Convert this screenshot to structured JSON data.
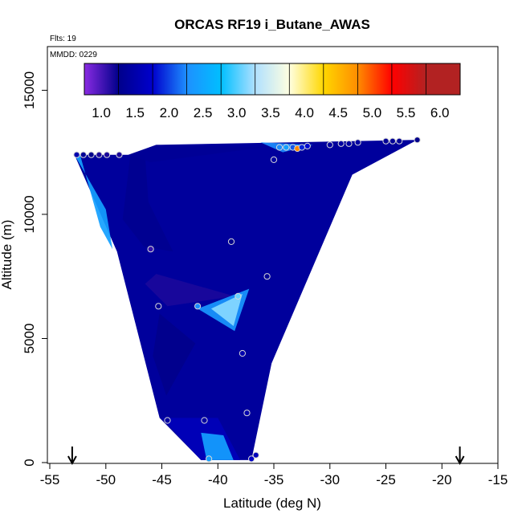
{
  "chart_data": {
    "type": "heatmap",
    "title": "ORCAS RF19 i_Butane_AWAS",
    "annotations": [
      "Flts: 19",
      "MMDD: 0229"
    ],
    "xlabel": "Latitude (deg N)",
    "ylabel": "Altitude (m)",
    "xlim": [
      -55,
      -15
    ],
    "ylim": [
      0,
      16500
    ],
    "xticks": [
      -55,
      -50,
      -45,
      -40,
      -35,
      -30,
      -25,
      -20,
      -15
    ],
    "yticks": [
      0,
      5000,
      10000,
      15000
    ],
    "grid": false,
    "colorbar": {
      "placement": "top-inside",
      "range": [
        0.75,
        6.3
      ],
      "tick_values": [
        1.0,
        1.5,
        2.0,
        2.5,
        3.0,
        3.5,
        4.0,
        4.5,
        5.0,
        5.5,
        6.0
      ],
      "tick_labels": [
        "1.0",
        "1.5",
        "2.0",
        "2.5",
        "3.0",
        "3.5",
        "4.0",
        "4.5",
        "5.0",
        "5.5",
        "6.0"
      ],
      "colors": [
        "#8a2be2",
        "#00008b",
        "#0000cd",
        "#1e90ff",
        "#00bfff",
        "#b0e0ff",
        "#ffffe0",
        "#ffd700",
        "#ff8c00",
        "#ff0000",
        "#b22222"
      ]
    },
    "field_polygon": [
      [
        -52.8,
        12400
      ],
      [
        -47.9,
        12400
      ],
      [
        -45.5,
        12800
      ],
      [
        -22.2,
        13000
      ],
      [
        -28.0,
        11600
      ],
      [
        -35.2,
        4000
      ],
      [
        -37.0,
        100
      ],
      [
        -41.5,
        100
      ],
      [
        -45.2,
        1800
      ],
      [
        -49.0,
        8500
      ]
    ],
    "field_regions": [
      {
        "level": 1.35,
        "polygon": [
          [
            -47.8,
            12400
          ],
          [
            -46.5,
            12400
          ],
          [
            -46.2,
            10500
          ],
          [
            -44.0,
            8500
          ],
          [
            -46.6,
            8700
          ],
          [
            -48.5,
            9800
          ]
        ]
      },
      {
        "level": 1.2,
        "polygon": [
          [
            -45.5,
            7600
          ],
          [
            -38.5,
            6700
          ],
          [
            -44.5,
            6300
          ],
          [
            -46.5,
            7200
          ]
        ]
      },
      {
        "level": 1.3,
        "polygon": [
          [
            -45.2,
            6000
          ],
          [
            -42.0,
            4800
          ],
          [
            -44.6,
            2700
          ],
          [
            -45.8,
            4300
          ]
        ]
      },
      {
        "level": 1.7,
        "polygon": [
          [
            -45.0,
            1800
          ],
          [
            -40.0,
            1800
          ],
          [
            -38.0,
            100
          ],
          [
            -41.5,
            100
          ]
        ]
      },
      {
        "level": 2.6,
        "polygon": [
          [
            -41.5,
            1200
          ],
          [
            -39.5,
            1100
          ],
          [
            -38.6,
            100
          ],
          [
            -41.0,
            100
          ]
        ]
      },
      {
        "level": 2.5,
        "polygon": [
          [
            -41.8,
            6200
          ],
          [
            -37.2,
            7000
          ],
          [
            -38.5,
            5300
          ]
        ]
      },
      {
        "level": 3.4,
        "polygon": [
          [
            -40.6,
            6200
          ],
          [
            -37.8,
            6800
          ],
          [
            -38.6,
            5500
          ]
        ]
      },
      {
        "level": 2.6,
        "polygon": [
          [
            -52.8,
            12400
          ],
          [
            -52.3,
            12400
          ],
          [
            -50.5,
            9500
          ],
          [
            -49.4,
            8600
          ],
          [
            -50.0,
            10200
          ]
        ]
      },
      {
        "level": 1.4,
        "polygon": [
          [
            -48.0,
            12400
          ],
          [
            -45.5,
            12800
          ],
          [
            -36.0,
            12700
          ],
          [
            -46.0,
            12100
          ]
        ]
      },
      {
        "level": 2.4,
        "polygon": [
          [
            -36.2,
            12900
          ],
          [
            -34.2,
            12500
          ],
          [
            -31.5,
            12800
          ]
        ]
      }
    ],
    "samples": [
      {
        "lat": -52.6,
        "alt": 12400,
        "value": 1.6
      },
      {
        "lat": -52.0,
        "alt": 12400,
        "value": 1.4
      },
      {
        "lat": -51.3,
        "alt": 12400,
        "value": 1.3
      },
      {
        "lat": -50.6,
        "alt": 12400,
        "value": 1.2
      },
      {
        "lat": -49.9,
        "alt": 12400,
        "value": 1.2
      },
      {
        "lat": -48.8,
        "alt": 12400,
        "value": 1.2
      },
      {
        "lat": -46.0,
        "alt": 8600,
        "value": 1.1
      },
      {
        "lat": -45.3,
        "alt": 6300,
        "value": 1.4
      },
      {
        "lat": -44.5,
        "alt": 1700,
        "value": 1.5
      },
      {
        "lat": -41.8,
        "alt": 6300,
        "value": 2.4
      },
      {
        "lat": -41.2,
        "alt": 1700,
        "value": 1.5
      },
      {
        "lat": -40.8,
        "alt": 150,
        "value": 2.6
      },
      {
        "lat": -38.8,
        "alt": 8900,
        "value": 1.3
      },
      {
        "lat": -38.2,
        "alt": 6700,
        "value": 3.3
      },
      {
        "lat": -37.8,
        "alt": 4400,
        "value": 1.6
      },
      {
        "lat": -37.4,
        "alt": 2000,
        "value": 1.6
      },
      {
        "lat": -37.0,
        "alt": 150,
        "value": 1.8
      },
      {
        "lat": -36.6,
        "alt": 300,
        "value": 1.7
      },
      {
        "lat": -35.6,
        "alt": 7500,
        "value": 1.4
      },
      {
        "lat": -35.0,
        "alt": 12200,
        "value": 1.5
      },
      {
        "lat": -34.5,
        "alt": 12700,
        "value": 2.4
      },
      {
        "lat": -33.9,
        "alt": 12700,
        "value": 2.6
      },
      {
        "lat": -33.3,
        "alt": 12700,
        "value": 2.2
      },
      {
        "lat": -32.9,
        "alt": 12650,
        "value": 5.2
      },
      {
        "lat": -32.5,
        "alt": 12700,
        "value": 2.0
      },
      {
        "lat": -32.0,
        "alt": 12750,
        "value": 1.9
      },
      {
        "lat": -30.0,
        "alt": 12800,
        "value": 1.5
      },
      {
        "lat": -29.0,
        "alt": 12850,
        "value": 1.5
      },
      {
        "lat": -28.3,
        "alt": 12850,
        "value": 1.5
      },
      {
        "lat": -27.5,
        "alt": 12900,
        "value": 1.5
      },
      {
        "lat": -25.0,
        "alt": 12950,
        "value": 1.4
      },
      {
        "lat": -24.4,
        "alt": 12950,
        "value": 1.4
      },
      {
        "lat": -23.8,
        "alt": 12950,
        "value": 1.4
      },
      {
        "lat": -22.2,
        "alt": 13000,
        "value": 1.3
      }
    ],
    "arrows": [
      {
        "lat": -53.0
      },
      {
        "lat": -18.4
      }
    ]
  }
}
